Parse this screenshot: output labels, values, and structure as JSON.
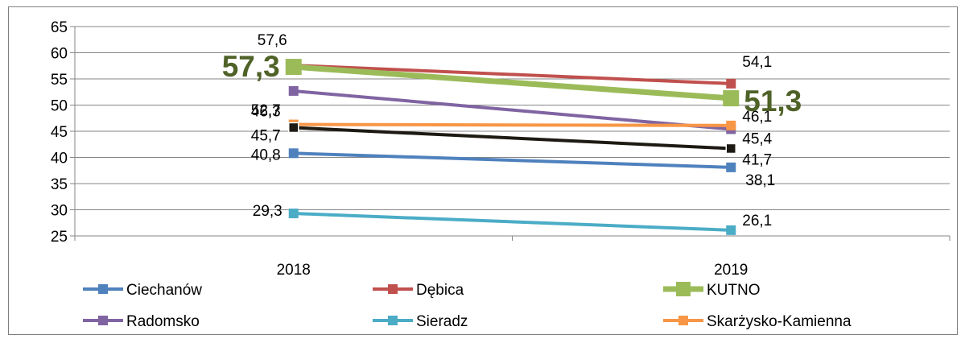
{
  "chart_data": {
    "type": "line",
    "x": [
      "2018",
      "2019"
    ],
    "ylim": [
      25,
      65
    ],
    "yticks": [
      25,
      30,
      35,
      40,
      45,
      50,
      55,
      60,
      65
    ],
    "grid": true,
    "legend_position": "bottom",
    "series": [
      {
        "name": "Ciechanów",
        "values": [
          40.8,
          38.1
        ],
        "labels": [
          "40,8",
          "38,1"
        ],
        "color": "#4f81bd",
        "in_legend": true
      },
      {
        "name": "Dębica",
        "values": [
          57.6,
          54.1
        ],
        "labels": [
          "57,6",
          "54,1"
        ],
        "color": "#c0504d",
        "in_legend": true
      },
      {
        "name": "Radomsko",
        "values": [
          52.7,
          45.4
        ],
        "labels": [
          "52,7",
          "45,4"
        ],
        "color": "#8064a2",
        "in_legend": true
      },
      {
        "name": "Sieradz",
        "values": [
          29.3,
          26.1
        ],
        "labels": [
          "29,3",
          "26,1"
        ],
        "color": "#4bacc6",
        "in_legend": true
      },
      {
        "name": "Skarżysko-Kamienna",
        "values": [
          46.3,
          46.1
        ],
        "labels": [
          "46,3",
          "46,1"
        ],
        "color": "#f79646",
        "in_legend": true
      },
      {
        "name": "",
        "values": [
          45.7,
          41.7
        ],
        "labels": [
          "45,7",
          "41,7"
        ],
        "color": "#1c1a12",
        "in_legend": false
      },
      {
        "name": "KUTNO",
        "values": [
          57.3,
          51.3
        ],
        "labels": [
          "57,3",
          "51,3"
        ],
        "color": "#9bbb59",
        "label_color": "#4f6228",
        "in_legend": true,
        "highlight": true
      }
    ],
    "legend_order": [
      "Ciechanów",
      "Dębica",
      "KUTNO",
      "Radomsko",
      "Sieradz",
      "Skarżysko-Kamienna"
    ]
  }
}
